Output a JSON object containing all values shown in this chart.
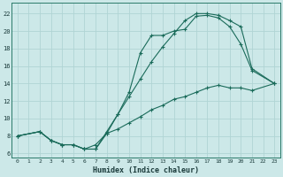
{
  "xlabel": "Humidex (Indice chaleur)",
  "bg_color": "#cce8e8",
  "grid_color": "#b0d4d4",
  "line_color": "#1a6b5a",
  "xlim": [
    -0.5,
    23.5
  ],
  "ylim": [
    5.5,
    23.2
  ],
  "xticks": [
    0,
    1,
    2,
    3,
    4,
    5,
    6,
    7,
    8,
    9,
    10,
    11,
    12,
    13,
    14,
    15,
    16,
    17,
    18,
    19,
    20,
    21,
    22,
    23
  ],
  "yticks": [
    6,
    8,
    10,
    12,
    14,
    16,
    18,
    20,
    22
  ],
  "line1_x": [
    0,
    2,
    3,
    4,
    5,
    6,
    7,
    8,
    9,
    10,
    11,
    12,
    13,
    14,
    15,
    16,
    17,
    18,
    19,
    20,
    21,
    23
  ],
  "line1_y": [
    8,
    8.5,
    7.5,
    7,
    7,
    6.5,
    6.5,
    8.5,
    10.5,
    13,
    17.5,
    19.5,
    19.5,
    20,
    20.2,
    21.7,
    21.8,
    21.5,
    20.5,
    18.5,
    15.5,
    14
  ],
  "line2_x": [
    0,
    2,
    3,
    4,
    5,
    6,
    7,
    8,
    9,
    10,
    11,
    12,
    13,
    14,
    15,
    16,
    17,
    18,
    19,
    20,
    21,
    23
  ],
  "line2_y": [
    8,
    8.5,
    7.5,
    7,
    7,
    6.5,
    6.5,
    8.3,
    10.5,
    12.5,
    14.5,
    16.5,
    18.2,
    19.7,
    21.2,
    22.0,
    22.0,
    21.8,
    21.2,
    20.5,
    15.7,
    14
  ],
  "line3_x": [
    0,
    2,
    3,
    4,
    5,
    6,
    7,
    8,
    9,
    10,
    11,
    12,
    13,
    14,
    15,
    16,
    17,
    18,
    19,
    20,
    21,
    23
  ],
  "line3_y": [
    8,
    8.5,
    7.5,
    7,
    7,
    6.5,
    7.0,
    8.3,
    8.8,
    9.5,
    10.2,
    11.0,
    11.5,
    12.2,
    12.5,
    13.0,
    13.5,
    13.8,
    13.5,
    13.5,
    13.2,
    14
  ]
}
